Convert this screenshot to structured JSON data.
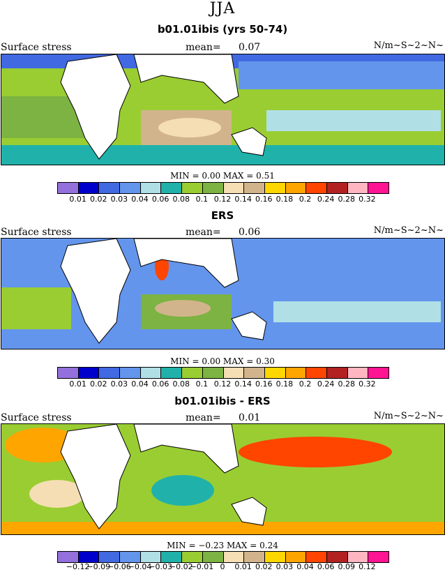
{
  "suptitle": "JJA",
  "panels": [
    {
      "title": "b01.01ibis (yrs 50-74)",
      "left_label": "Surface stress",
      "mean_label": "mean=",
      "mean_value": "0.07",
      "units": "N/m~S~2~N~",
      "min_label": "MIN =",
      "min_value": "0.00",
      "max_label": "MAX =",
      "max_value": "0.51",
      "levels": [
        "0.01",
        "0.02",
        "0.03",
        "0.04",
        "0.06",
        "0.08",
        "0.1",
        "0.12",
        "0.14",
        "0.16",
        "0.18",
        "0.2",
        "0.24",
        "0.28",
        "0.32"
      ],
      "palette": [
        "#9370db",
        "#0000cd",
        "#4169e1",
        "#6495ed",
        "#b0e0e6",
        "#20b2aa",
        "#9acd32",
        "#7cb342",
        "#f5deb3",
        "#d2b48c",
        "#ffd700",
        "#ffa500",
        "#ff4500",
        "#b22222",
        "#ffb6c1",
        "#ff1493"
      ]
    },
    {
      "title": "ERS",
      "left_label": "Surface stress",
      "mean_label": "mean=",
      "mean_value": "0.06",
      "units": "N/m~S~2~N~",
      "min_label": "MIN =",
      "min_value": "0.00",
      "max_label": "MAX =",
      "max_value": "0.30",
      "levels": [
        "0.01",
        "0.02",
        "0.03",
        "0.04",
        "0.06",
        "0.08",
        "0.1",
        "0.12",
        "0.14",
        "0.16",
        "0.18",
        "0.2",
        "0.24",
        "0.28",
        "0.32"
      ],
      "palette": [
        "#9370db",
        "#0000cd",
        "#4169e1",
        "#6495ed",
        "#b0e0e6",
        "#20b2aa",
        "#9acd32",
        "#7cb342",
        "#f5deb3",
        "#d2b48c",
        "#ffd700",
        "#ffa500",
        "#ff4500",
        "#b22222",
        "#ffb6c1",
        "#ff1493"
      ]
    },
    {
      "title": "b01.01ibis - ERS",
      "left_label": "Surface stress",
      "mean_label": "mean=",
      "mean_value": "0.01",
      "units": "N/m~S~2~N~",
      "min_label": "MIN =",
      "min_value": "−0.23",
      "max_label": "MAX =",
      "max_value": "0.24",
      "levels": [
        "−0.12",
        "−0.09",
        "−0.06",
        "−0.04",
        "−0.03",
        "−0.02",
        "−0.01",
        "0",
        "0.01",
        "0.02",
        "0.03",
        "0.04",
        "0.06",
        "0.09",
        "0.12"
      ],
      "palette": [
        "#9370db",
        "#0000cd",
        "#4169e1",
        "#6495ed",
        "#b0e0e6",
        "#20b2aa",
        "#9acd32",
        "#7cb342",
        "#f5deb3",
        "#d2b48c",
        "#ffd700",
        "#ffa500",
        "#ff4500",
        "#b22222",
        "#ffb6c1",
        "#ff1493"
      ]
    }
  ]
}
